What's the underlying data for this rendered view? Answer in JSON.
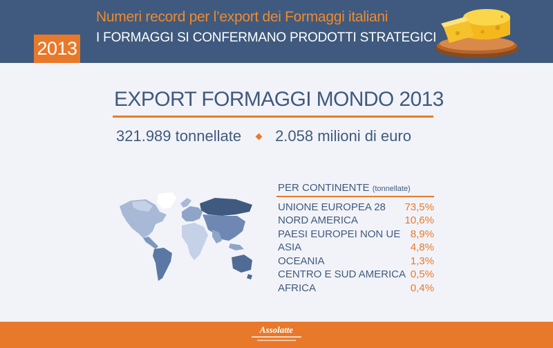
{
  "header": {
    "year": "2013",
    "title_line1": "Numeri record per l’export dei Formaggi italiani",
    "title_line2": "I FORMAGGI SI CONFERMANO PRODOTTI STRATEGICI"
  },
  "main": {
    "title": "EXPORT FORMAGGI MONDO 2013",
    "tonnes": "321.989 tonnellate",
    "euro": "2.058 milioni di euro"
  },
  "legend": {
    "heading": "PER CONTINENTE",
    "heading_unit": "(tonnellate)"
  },
  "chart_data": {
    "type": "table",
    "title": "PER CONTINENTE",
    "unit": "(tonnellate)",
    "rows": [
      {
        "label": "UNIONE EUROPEA 28",
        "value": "73,5%"
      },
      {
        "label": "NORD AMERICA",
        "value": "10,6%"
      },
      {
        "label": "PAESI EUROPEI NON UE",
        "value": "8,9%"
      },
      {
        "label": "ASIA",
        "value": "4,8%"
      },
      {
        "label": "OCEANIA",
        "value": "1,3%"
      },
      {
        "label": "CENTRO E SUD AMERICA",
        "value": "0,5%"
      },
      {
        "label": "AFRICA",
        "value": "0,4%"
      }
    ]
  },
  "footer": {
    "brand": "Assolatte"
  },
  "colors": {
    "navy": "#3f5a7e",
    "orange": "#e8792a",
    "background": "#f2f3f8"
  }
}
